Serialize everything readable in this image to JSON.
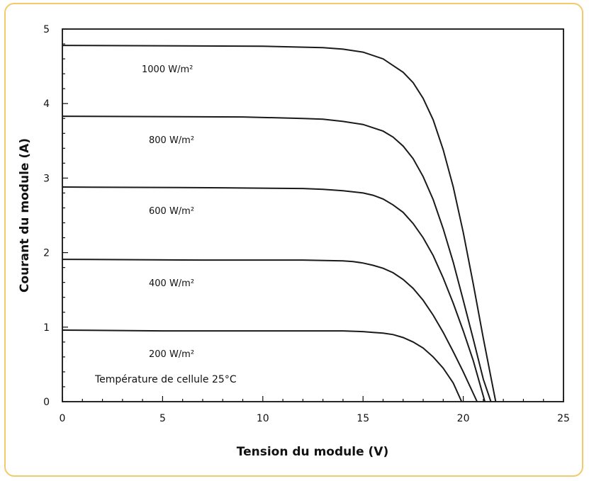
{
  "chart_data": {
    "type": "line",
    "xlabel": "Tension du module (V)",
    "ylabel": "Courant du module (A)",
    "xlim": [
      0,
      25
    ],
    "ylim": [
      0,
      5
    ],
    "x_ticks": [
      "0",
      "5",
      "10",
      "15",
      "20",
      "25"
    ],
    "y_ticks": [
      "0",
      "1",
      "2",
      "3",
      "4",
      "5"
    ],
    "grid": false,
    "annotation": "Température de cellule 25°C",
    "series": [
      {
        "name": "1000 W/m²",
        "x": [
          0,
          10,
          13,
          14,
          15,
          16,
          17,
          17.5,
          18,
          18.5,
          19,
          19.5,
          20,
          20.5,
          21,
          21.4,
          21.62
        ],
        "y": [
          4.78,
          4.77,
          4.75,
          4.73,
          4.69,
          4.6,
          4.42,
          4.28,
          4.07,
          3.78,
          3.38,
          2.88,
          2.27,
          1.58,
          0.85,
          0.3,
          0
        ]
      },
      {
        "name": "800 W/m²",
        "x": [
          0,
          9,
          12,
          13,
          14,
          15,
          16,
          16.5,
          17,
          17.5,
          18,
          18.5,
          19,
          19.5,
          20,
          20.5,
          21,
          21.38
        ],
        "y": [
          3.83,
          3.82,
          3.8,
          3.79,
          3.76,
          3.72,
          3.63,
          3.55,
          3.43,
          3.26,
          3.02,
          2.71,
          2.32,
          1.87,
          1.36,
          0.84,
          0.3,
          0
        ]
      },
      {
        "name": "600 W/m²",
        "x": [
          0,
          8,
          12,
          13,
          14,
          15,
          15.5,
          16,
          16.5,
          17,
          17.5,
          18,
          18.5,
          19,
          19.5,
          20,
          20.5,
          21.08
        ],
        "y": [
          2.88,
          2.87,
          2.86,
          2.85,
          2.83,
          2.8,
          2.77,
          2.72,
          2.64,
          2.54,
          2.39,
          2.2,
          1.96,
          1.66,
          1.32,
          0.95,
          0.55,
          0
        ]
      },
      {
        "name": "400 W/m²",
        "x": [
          0,
          7,
          12,
          14,
          14.5,
          15,
          15.5,
          16,
          16.5,
          17,
          17.5,
          18,
          18.5,
          19,
          19.5,
          20,
          20.69
        ],
        "y": [
          1.91,
          1.9,
          1.9,
          1.89,
          1.88,
          1.86,
          1.83,
          1.79,
          1.73,
          1.64,
          1.52,
          1.36,
          1.16,
          0.93,
          0.67,
          0.4,
          0
        ]
      },
      {
        "name": "200 W/m²",
        "x": [
          0,
          5,
          12,
          14,
          15,
          15.5,
          16,
          16.5,
          17,
          17.5,
          18,
          18.5,
          19,
          19.5,
          19.92
        ],
        "y": [
          0.96,
          0.95,
          0.95,
          0.95,
          0.94,
          0.93,
          0.92,
          0.9,
          0.86,
          0.8,
          0.72,
          0.6,
          0.45,
          0.25,
          0
        ]
      }
    ]
  }
}
